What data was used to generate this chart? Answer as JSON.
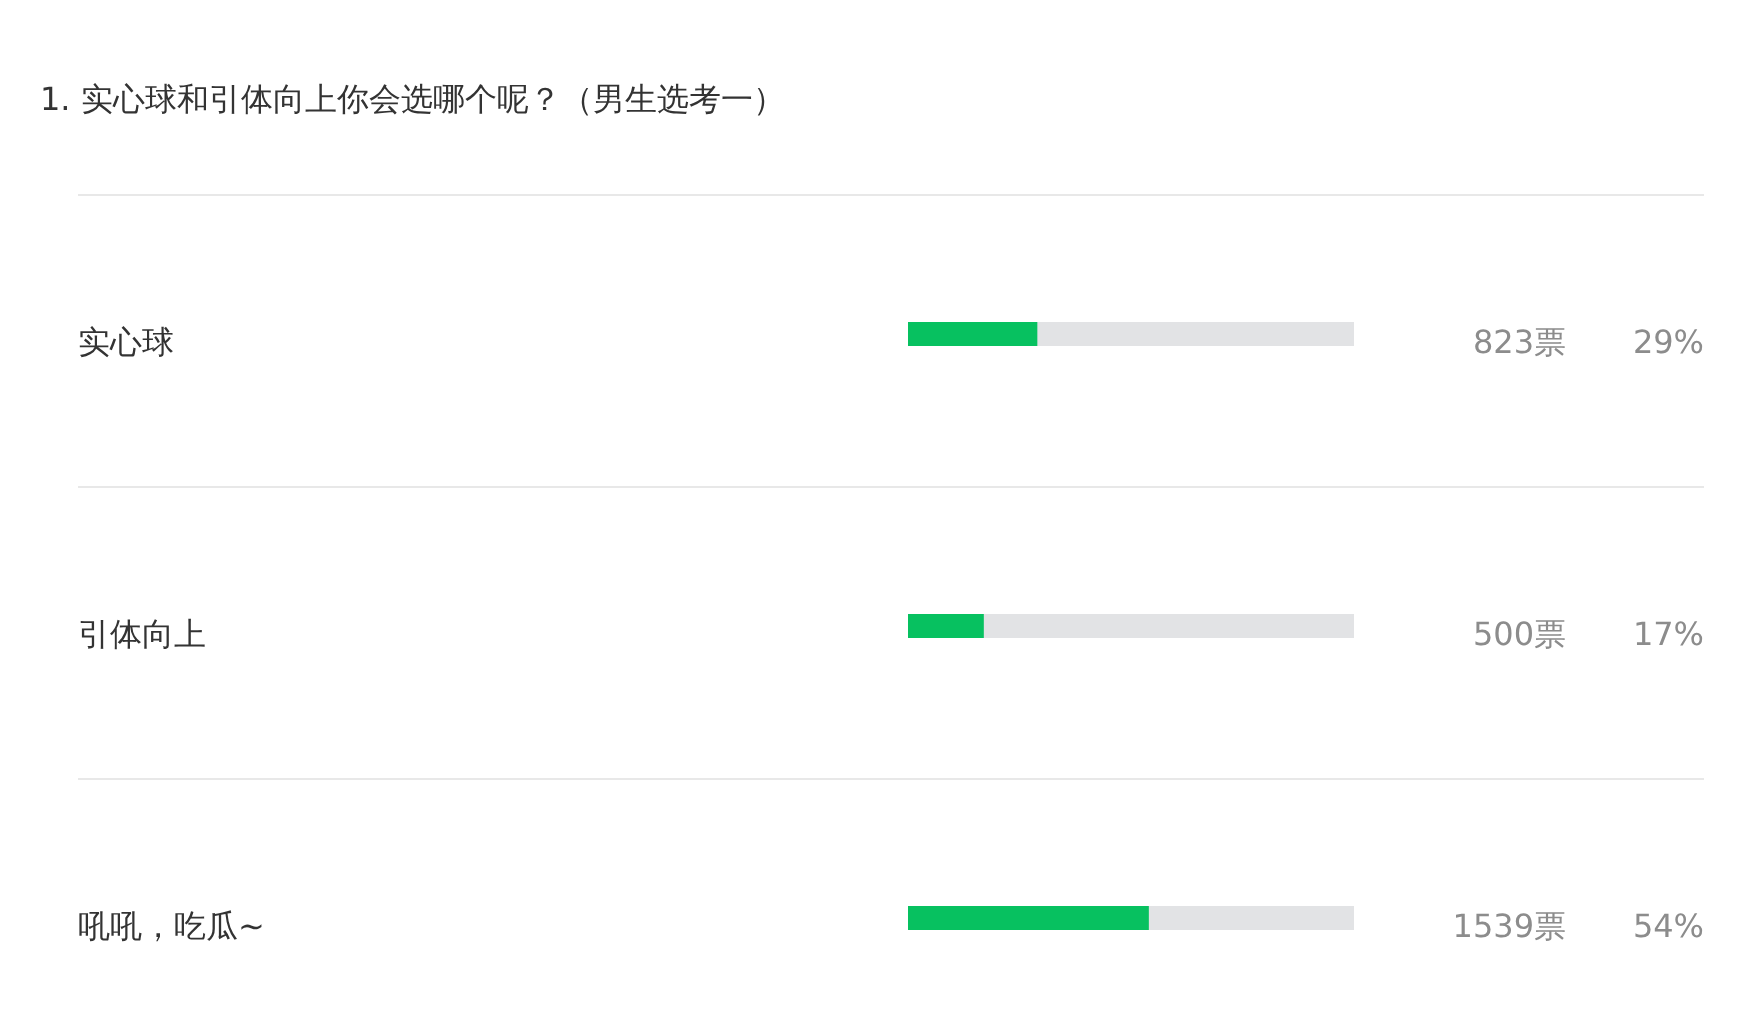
{
  "chart_data": {
    "type": "bar",
    "orientation": "horizontal",
    "title": "1. 实心球和引体向上你会选哪个呢？（男生选考一）",
    "categories": [
      "实心球",
      "引体向上",
      "吼吼，吃瓜~"
    ],
    "values": [
      29,
      17,
      54
    ],
    "value_labels": [
      "29%",
      "17%",
      "54%"
    ],
    "color": "#07c160",
    "xlim": [
      0,
      100
    ],
    "tick_labels": "y",
    "annotations": [
      "823票",
      "500票",
      "1539票"
    ]
  }
}
